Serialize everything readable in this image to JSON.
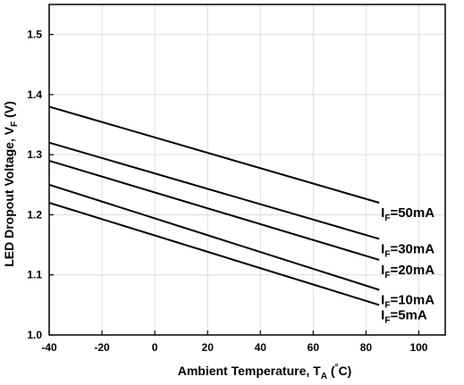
{
  "chart_data": {
    "type": "line",
    "xlabel": {
      "main": "Ambient Temperature, T",
      "sub": "A",
      "unit_open": " (",
      "unit_deg": "°",
      "unit_close": "C)"
    },
    "ylabel": {
      "main": "LED Dropout Voltage, V",
      "sub": "F",
      "unit": " (V)"
    },
    "xlim": [
      -40,
      110
    ],
    "ylim": [
      1.0,
      1.55
    ],
    "xticks": [
      -40,
      -20,
      0,
      20,
      40,
      60,
      80,
      100
    ],
    "yticks": [
      1.0,
      1.1,
      1.2,
      1.3,
      1.4,
      1.5
    ],
    "xtick_labels": [
      "-40",
      "-20",
      "0",
      "20",
      "40",
      "60",
      "80",
      "100"
    ],
    "ytick_labels": [
      "1.0",
      "1.1",
      "1.2",
      "1.3",
      "1.4",
      "1.5"
    ],
    "grid": true,
    "series": [
      {
        "label_main": "I",
        "label_sub": "F",
        "label_value": "=50mA",
        "x": [
          -40,
          85
        ],
        "y": [
          1.38,
          1.22
        ]
      },
      {
        "label_main": "I",
        "label_sub": "F",
        "label_value": "=30mA",
        "x": [
          -40,
          85
        ],
        "y": [
          1.32,
          1.16
        ]
      },
      {
        "label_main": "I",
        "label_sub": "F",
        "label_value": "=20mA",
        "x": [
          -40,
          85
        ],
        "y": [
          1.29,
          1.125
        ]
      },
      {
        "label_main": "I",
        "label_sub": "F",
        "label_value": "=10mA",
        "x": [
          -40,
          85
        ],
        "y": [
          1.25,
          1.075
        ]
      },
      {
        "label_main": "I",
        "label_sub": "F",
        "label_value": "=5mA",
        "x": [
          -40,
          85
        ],
        "y": [
          1.22,
          1.05
        ]
      }
    ]
  }
}
